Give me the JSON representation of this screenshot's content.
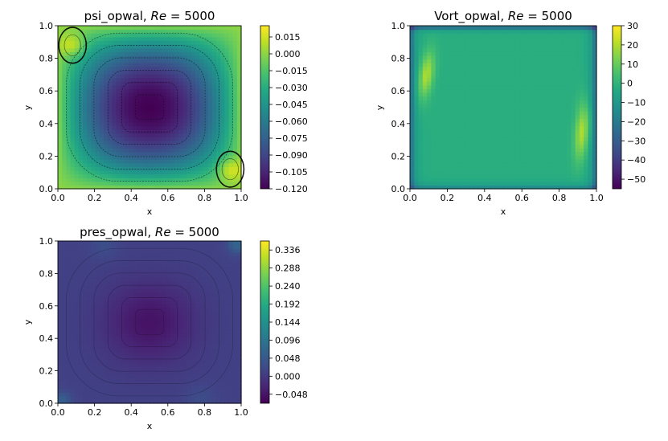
{
  "colors": {
    "viridis": [
      "#440154",
      "#482475",
      "#414487",
      "#355f8d",
      "#2a788e",
      "#21918c",
      "#22a884",
      "#44bf70",
      "#7ad151",
      "#bddf26",
      "#fde725"
    ]
  },
  "chart_data": [
    {
      "type": "heatmap",
      "title_prefix": "psi_opwal, ",
      "title_math": "Re",
      "title_suffix": " = 5000",
      "xlabel": "x",
      "ylabel": "y",
      "xlim": [
        0.0,
        1.0
      ],
      "ylim": [
        0.0,
        1.0
      ],
      "xticks": [
        "0.0",
        "0.2",
        "0.4",
        "0.6",
        "0.8",
        "1.0"
      ],
      "yticks": [
        "0.0",
        "0.2",
        "0.4",
        "0.6",
        "0.8",
        "1.0"
      ],
      "colorbar": {
        "min": -0.12,
        "max": 0.025,
        "tick_values": [
          0.015,
          0.0,
          -0.015,
          -0.03,
          -0.045,
          -0.06,
          -0.075,
          -0.09,
          -0.105,
          -0.12
        ],
        "tick_labels": [
          "0.015",
          "0.000",
          "−0.015",
          "−0.030",
          "−0.045",
          "−0.060",
          "−0.075",
          "−0.090",
          "−0.105",
          "−0.120"
        ]
      },
      "field": {
        "kind": "psi",
        "center_value": -0.12,
        "corner_value": 0.015,
        "eddies": [
          [
            0.08,
            0.88
          ],
          [
            0.94,
            0.12
          ]
        ]
      }
    },
    {
      "type": "heatmap",
      "title_prefix": "Vort_opwal, ",
      "title_math": "Re",
      "title_suffix": " = 5000",
      "xlabel": "x",
      "ylabel": "y",
      "xlim": [
        0.0,
        1.0
      ],
      "ylim": [
        0.0,
        1.0
      ],
      "xticks": [
        "0.0",
        "0.2",
        "0.4",
        "0.6",
        "0.8",
        "1.0"
      ],
      "yticks": [
        "0.0",
        "0.2",
        "0.4",
        "0.6",
        "0.8",
        "1.0"
      ],
      "colorbar": {
        "min": -55,
        "max": 30,
        "tick_values": [
          30,
          20,
          10,
          0,
          -10,
          -20,
          -30,
          -40,
          -50
        ],
        "tick_labels": [
          "30",
          "20",
          "10",
          "0",
          "−10",
          "−20",
          "−30",
          "−40",
          "−50"
        ]
      },
      "field": {
        "kind": "vorticity",
        "core_value": -2
      }
    },
    {
      "type": "heatmap",
      "title_prefix": "pres_opwal, ",
      "title_math": "Re",
      "title_suffix": " = 5000",
      "xlabel": "x",
      "ylabel": "y",
      "xlim": [
        0.0,
        1.0
      ],
      "ylim": [
        0.0,
        1.0
      ],
      "xticks": [
        "0.0",
        "0.2",
        "0.4",
        "0.6",
        "0.8",
        "1.0"
      ],
      "yticks": [
        "0.0",
        "0.2",
        "0.4",
        "0.6",
        "0.8",
        "1.0"
      ],
      "colorbar": {
        "min": -0.072,
        "max": 0.36,
        "tick_values": [
          0.336,
          0.288,
          0.24,
          0.192,
          0.144,
          0.096,
          0.048,
          0.0,
          -0.048
        ],
        "tick_labels": [
          "0.336",
          "0.288",
          "0.240",
          "0.192",
          "0.144",
          "0.096",
          "0.048",
          "0.000",
          "−0.048"
        ]
      },
      "field": {
        "kind": "pressure",
        "center_value": -0.05,
        "background_value": 0.01
      }
    }
  ]
}
